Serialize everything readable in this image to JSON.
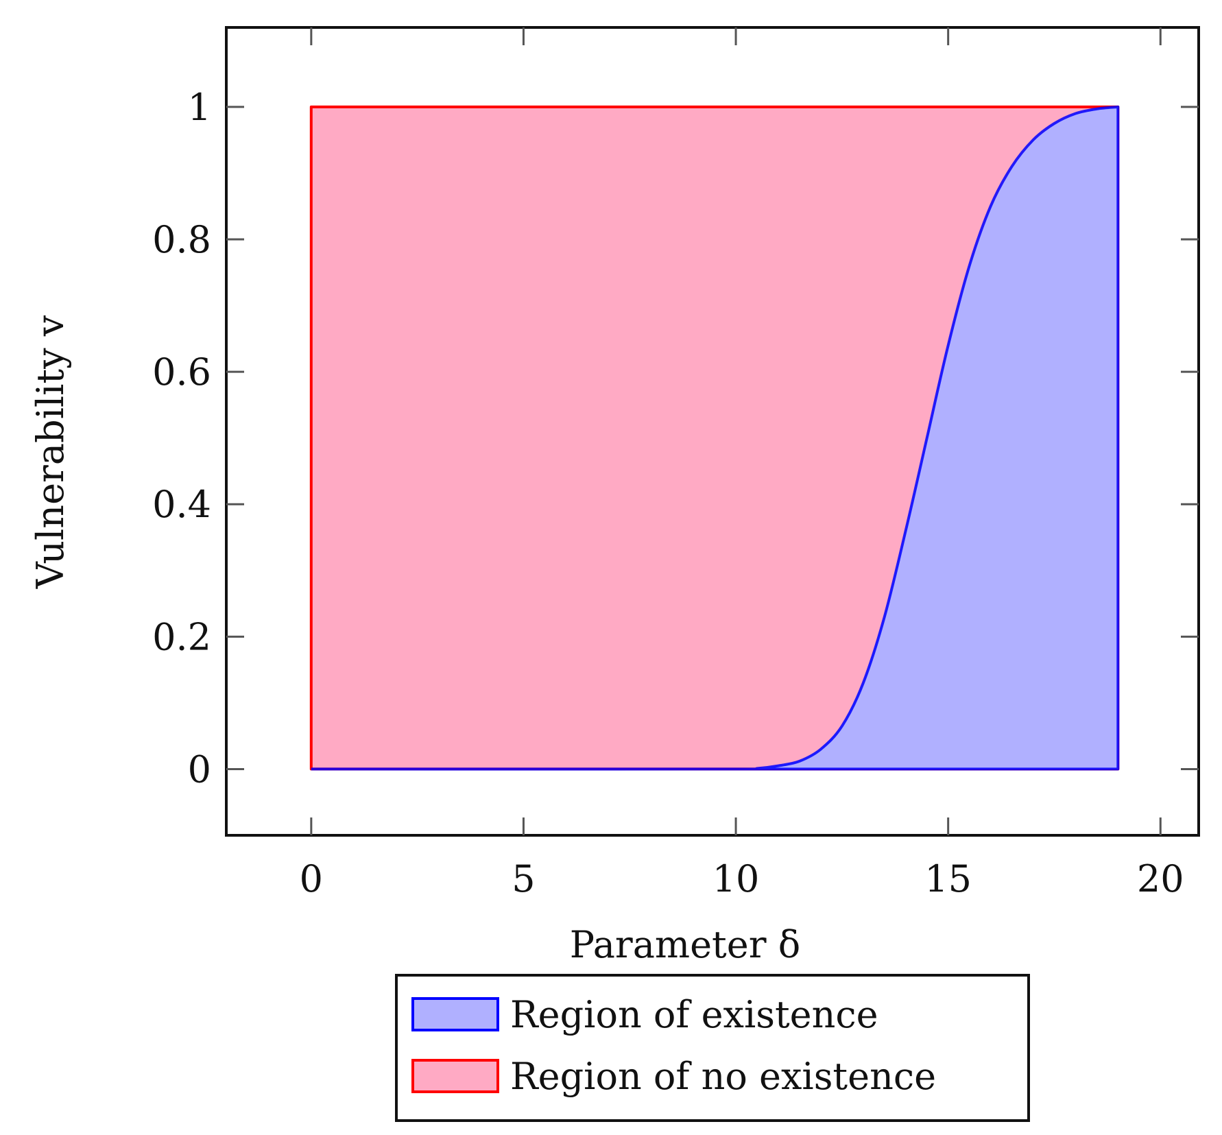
{
  "chart_data": {
    "type": "area",
    "title": "",
    "xlabel": "Parameter δ",
    "ylabel": "Vulnerability v",
    "xlim": [
      -2,
      20.9
    ],
    "ylim": [
      -0.1,
      1.12
    ],
    "xticks": [
      "0",
      "5",
      "10",
      "15",
      "20"
    ],
    "yticks": [
      "0",
      "0.2",
      "0.4",
      "0.6",
      "0.8",
      "1"
    ],
    "grid": false,
    "legend_position": "bottom-center",
    "series": [
      {
        "name": "Region of existence",
        "color": "#0000ff",
        "fill": "#b0b0ff",
        "x": [
          0,
          10,
          10.5,
          11,
          11.5,
          12,
          12.5,
          13,
          13.5,
          14,
          14.5,
          15,
          15.5,
          16,
          16.5,
          17,
          17.5,
          18,
          18.5,
          19
        ],
        "y": [
          0,
          0,
          0.001,
          0.005,
          0.012,
          0.03,
          0.065,
          0.13,
          0.23,
          0.36,
          0.5,
          0.64,
          0.76,
          0.85,
          0.91,
          0.95,
          0.975,
          0.99,
          0.997,
          1.0
        ]
      },
      {
        "name": "Region of no existence",
        "color": "#ff0000",
        "fill": "#ffaac4",
        "x": [
          0,
          19
        ],
        "y": [
          1,
          1
        ]
      }
    ]
  }
}
